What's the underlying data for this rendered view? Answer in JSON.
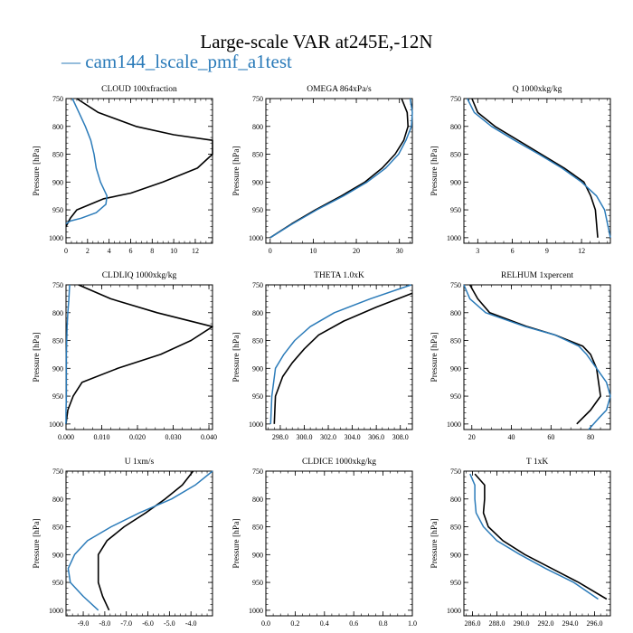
{
  "page": {
    "title": "Large-scale VAR at245E,-12N",
    "legend_prefix": "—",
    "legend_label": "cam144_lscale_pmf_a1test"
  },
  "colors": {
    "black_series": "#000000",
    "blue_series": "#2b7bb9"
  },
  "chart_data": [
    {
      "type": "line",
      "title": "CLOUD 100xfraction",
      "ylabel": "Pressure [hPa]",
      "xlim": [
        0,
        13.6
      ],
      "xticks": [
        0,
        2,
        4,
        6,
        8,
        10,
        12
      ],
      "xtick_labels": [
        "0",
        "2",
        "4",
        "6",
        "8",
        "10",
        "12"
      ],
      "ylim": [
        750,
        1010
      ],
      "yticks": [
        750,
        800,
        850,
        900,
        950,
        1000
      ],
      "series": [
        {
          "color": "#000000",
          "x": [
            1.0,
            3.0,
            6.5,
            10.0,
            13.6,
            13.6,
            12.2,
            9.0,
            6.0,
            3.5,
            1.0,
            0.4,
            0.0
          ],
          "y": [
            750,
            775,
            800,
            815,
            825,
            850,
            875,
            900,
            920,
            930,
            950,
            965,
            980
          ]
        },
        {
          "color": "#2b7bb9",
          "x": [
            0.6,
            1.2,
            1.8,
            2.3,
            2.6,
            2.8,
            3.2,
            3.8,
            3.7,
            2.8,
            1.4,
            0.4,
            0.0
          ],
          "y": [
            750,
            775,
            800,
            825,
            850,
            875,
            900,
            925,
            940,
            955,
            965,
            970,
            975
          ]
        }
      ]
    },
    {
      "type": "line",
      "title": "OMEGA 864xPa/s",
      "ylabel": "Pressure [hPa]",
      "xlim": [
        -1,
        33
      ],
      "xticks": [
        0,
        10,
        20,
        30
      ],
      "xtick_labels": [
        "0",
        "10",
        "20",
        "30"
      ],
      "ylim": [
        750,
        1010
      ],
      "yticks": [
        750,
        800,
        850,
        900,
        950,
        1000
      ],
      "series": [
        {
          "color": "#000000",
          "x": [
            30.5,
            31.8,
            32.0,
            31.0,
            29.0,
            26.0,
            22.0,
            16.5,
            10.5,
            5.0,
            0.0
          ],
          "y": [
            750,
            775,
            800,
            825,
            850,
            875,
            900,
            925,
            950,
            975,
            1000
          ]
        },
        {
          "color": "#2b7bb9",
          "x": [
            32.5,
            33.0,
            32.8,
            31.5,
            29.8,
            26.8,
            22.5,
            17.0,
            10.8,
            5.2,
            0.0
          ],
          "y": [
            750,
            775,
            800,
            825,
            850,
            875,
            900,
            925,
            950,
            975,
            1000
          ]
        }
      ]
    },
    {
      "type": "line",
      "title": "Q 1000xkg/kg",
      "ylabel": "Pressure [hPa]",
      "xlim": [
        1.8,
        14.5
      ],
      "xticks": [
        3,
        6,
        9,
        12
      ],
      "xtick_labels": [
        "3",
        "6",
        "9",
        "12"
      ],
      "ylim": [
        750,
        1010
      ],
      "yticks": [
        750,
        800,
        850,
        900,
        950,
        1000
      ],
      "series": [
        {
          "color": "#000000",
          "x": [
            2.5,
            3.0,
            4.5,
            6.5,
            8.5,
            10.5,
            12.2,
            12.8,
            13.2,
            13.4
          ],
          "y": [
            750,
            775,
            800,
            825,
            850,
            875,
            900,
            925,
            950,
            1000
          ]
        },
        {
          "color": "#2b7bb9",
          "x": [
            2.1,
            2.7,
            4.2,
            6.2,
            8.3,
            10.3,
            12.0,
            13.3,
            14.0,
            14.5
          ],
          "y": [
            750,
            775,
            800,
            825,
            850,
            875,
            900,
            925,
            950,
            1000
          ]
        }
      ]
    },
    {
      "type": "line",
      "title": "CLDLIQ 1000xkg/kg",
      "ylabel": "Pressure [hPa]",
      "xlim": [
        0,
        0.041
      ],
      "xticks": [
        0,
        0.01,
        0.02,
        0.03,
        0.04
      ],
      "xtick_labels": [
        "0.000",
        "0.010",
        "0.020",
        "0.030",
        "0.040"
      ],
      "ylim": [
        750,
        1010
      ],
      "yticks": [
        750,
        800,
        850,
        900,
        950,
        1000
      ],
      "series": [
        {
          "color": "#000000",
          "x": [
            0.0035,
            0.0125,
            0.0255,
            0.041,
            0.035,
            0.0265,
            0.0145,
            0.0045,
            0.002,
            0.0005,
            0.0
          ],
          "y": [
            750,
            775,
            800,
            825,
            850,
            875,
            900,
            925,
            950,
            975,
            1000
          ]
        },
        {
          "color": "#2b7bb9",
          "x": [
            0.001,
            0.0008,
            0.0005,
            0.0003,
            0.0002,
            0.0001,
            0.0001,
            0.0001,
            0.0001,
            0.0,
            0.0
          ],
          "y": [
            750,
            775,
            800,
            825,
            850,
            875,
            900,
            925,
            950,
            975,
            1000
          ]
        }
      ]
    },
    {
      "type": "line",
      "title": "THETA 1.0xK",
      "ylabel": "Pressure [hPa]",
      "xlim": [
        296.8,
        309
      ],
      "xticks": [
        298,
        300,
        302,
        304,
        306,
        308
      ],
      "xtick_labels": [
        "298.0",
        "300.0",
        "302.0",
        "304.0",
        "306.0",
        "308.0"
      ],
      "ylim": [
        750,
        1010
      ],
      "yticks": [
        750,
        800,
        850,
        900,
        950,
        1000
      ],
      "series": [
        {
          "color": "#000000",
          "x": [
            309.0,
            306.0,
            303.3,
            301.2,
            300.0,
            299.0,
            298.2,
            297.6,
            297.5
          ],
          "y": [
            765,
            790,
            815,
            840,
            865,
            890,
            915,
            950,
            1000
          ]
        },
        {
          "color": "#2b7bb9",
          "x": [
            308.9,
            305.5,
            302.5,
            300.5,
            299.2,
            298.3,
            297.6,
            297.3,
            297.2
          ],
          "y": [
            750,
            775,
            800,
            825,
            850,
            875,
            900,
            950,
            1000
          ]
        }
      ]
    },
    {
      "type": "line",
      "title": "RELHUM 1xpercent",
      "ylabel": "Pressure [hPa]",
      "xlim": [
        16,
        90
      ],
      "xticks": [
        20,
        40,
        60,
        80
      ],
      "xtick_labels": [
        "20",
        "40",
        "60",
        "80"
      ],
      "ylim": [
        750,
        1010
      ],
      "yticks": [
        750,
        800,
        850,
        900,
        950,
        1000
      ],
      "series": [
        {
          "color": "#000000",
          "x": [
            19.0,
            23.0,
            29.0,
            48.0,
            62.0,
            76.0,
            80.0,
            83.0,
            85.0,
            80.0,
            73.0
          ],
          "y": [
            750,
            775,
            800,
            825,
            840,
            860,
            875,
            900,
            950,
            975,
            1000
          ]
        },
        {
          "color": "#2b7bb9",
          "x": [
            16.0,
            19.0,
            27.0,
            47.0,
            62.0,
            74.0,
            78.0,
            83.0,
            88.0,
            90.0,
            88.0,
            84.0,
            79.0
          ],
          "y": [
            750,
            775,
            800,
            825,
            840,
            860,
            875,
            900,
            925,
            950,
            975,
            990,
            1010
          ]
        }
      ]
    },
    {
      "type": "line",
      "title": "U 1xm/s",
      "ylabel": "Pressure [hPa]",
      "xlim": [
        -9.8,
        -3.0
      ],
      "xticks": [
        -9,
        -8,
        -7,
        -6,
        -5,
        -4
      ],
      "xtick_labels": [
        "-9.0",
        "-8.0",
        "-7.0",
        "-6.0",
        "-5.0",
        "-4.0"
      ],
      "ylim": [
        750,
        1010
      ],
      "yticks": [
        750,
        800,
        850,
        900,
        950,
        1000
      ],
      "series": [
        {
          "color": "#000000",
          "x": [
            -3.9,
            -4.4,
            -5.2,
            -6.1,
            -7.1,
            -7.9,
            -8.3,
            -8.3,
            -8.1,
            -7.8
          ],
          "y": [
            750,
            775,
            800,
            825,
            850,
            875,
            900,
            950,
            975,
            1000
          ]
        },
        {
          "color": "#2b7bb9",
          "x": [
            -3.0,
            -3.8,
            -4.9,
            -6.4,
            -7.7,
            -8.8,
            -9.4,
            -9.7,
            -9.6,
            -9.0,
            -8.3
          ],
          "y": [
            750,
            775,
            800,
            825,
            850,
            875,
            900,
            925,
            950,
            975,
            1000
          ]
        }
      ]
    },
    {
      "type": "line",
      "title": "CLDICE 1000xkg/kg",
      "ylabel": "Pressure [hPa]",
      "xlim": [
        0,
        1.0
      ],
      "xticks": [
        0,
        0.2,
        0.4,
        0.6,
        0.8,
        1.0
      ],
      "xtick_labels": [
        "0.0",
        "0.2",
        "0.4",
        "0.6",
        "0.8",
        "1.0"
      ],
      "ylim": [
        750,
        1010
      ],
      "yticks": [
        750,
        800,
        850,
        900,
        950,
        1000
      ],
      "series": []
    },
    {
      "type": "line",
      "title": "T 1xK",
      "ylabel": "Pressure [hPa]",
      "xlim": [
        285.3,
        297.3
      ],
      "xticks": [
        286,
        288,
        290,
        292,
        294,
        296
      ],
      "xtick_labels": [
        "286.0",
        "288.0",
        "290.0",
        "292.0",
        "294.0",
        "296.0"
      ],
      "ylim": [
        750,
        1010
      ],
      "yticks": [
        750,
        800,
        850,
        900,
        950,
        1000
      ],
      "series": [
        {
          "color": "#000000",
          "x": [
            286.2,
            287.0,
            287.0,
            286.9,
            287.3,
            288.5,
            290.3,
            292.5,
            294.7,
            297.0
          ],
          "y": [
            755,
            775,
            800,
            825,
            850,
            875,
            900,
            925,
            950,
            980
          ]
        },
        {
          "color": "#2b7bb9",
          "x": [
            285.8,
            286.2,
            286.2,
            286.3,
            286.9,
            288.0,
            289.9,
            292.0,
            294.3,
            296.3
          ],
          "y": [
            755,
            775,
            800,
            825,
            850,
            875,
            900,
            925,
            950,
            980
          ]
        }
      ]
    }
  ]
}
